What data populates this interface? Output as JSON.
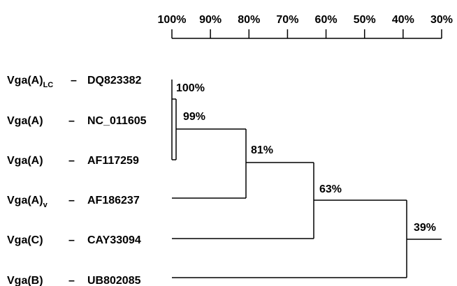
{
  "scale": {
    "ticks": [
      "100%",
      "90%",
      "80%",
      "70%",
      "60%",
      "50%",
      "40%",
      "30%"
    ],
    "tick_values": [
      100,
      90,
      80,
      70,
      60,
      50,
      40,
      30
    ]
  },
  "leaves": [
    {
      "id": "leaf-dq823382",
      "name": "Vga(A)",
      "subscript": "LC",
      "separator": "–",
      "accession": "DQ823382"
    },
    {
      "id": "leaf-nc011605",
      "name": "Vga(A)",
      "subscript": "",
      "separator": "–",
      "accession": "NC_011605"
    },
    {
      "id": "leaf-af117259",
      "name": "Vga(A)",
      "subscript": "",
      "separator": "–",
      "accession": "AF117259"
    },
    {
      "id": "leaf-af186237",
      "name": "Vga(A)",
      "subscript": "v",
      "separator": "–",
      "accession": "AF186237"
    },
    {
      "id": "leaf-cay33094",
      "name": "Vga(C)",
      "subscript": "",
      "separator": "–",
      "accession": "CAY33094"
    },
    {
      "id": "leaf-ub802085",
      "name": "Vga(B)",
      "subscript": "",
      "separator": "–",
      "accession": "UB802085"
    }
  ],
  "nodes": [
    {
      "id": "node-100",
      "label": "100%",
      "similarity": 100,
      "children": [
        "leaf-dq823382",
        "leaf-af117259"
      ]
    },
    {
      "id": "node-99",
      "label": "99%",
      "similarity": 99,
      "children": [
        "node-100",
        "leaf-nc011605"
      ]
    },
    {
      "id": "node-81",
      "label": "81%",
      "similarity": 81,
      "children": [
        "node-99",
        "leaf-af186237"
      ]
    },
    {
      "id": "node-63",
      "label": "63%",
      "similarity": 63,
      "children": [
        "node-81",
        "leaf-cay33094"
      ]
    },
    {
      "id": "node-39",
      "label": "39%",
      "similarity": 39,
      "children": [
        "node-63",
        "leaf-ub802085"
      ]
    }
  ]
}
